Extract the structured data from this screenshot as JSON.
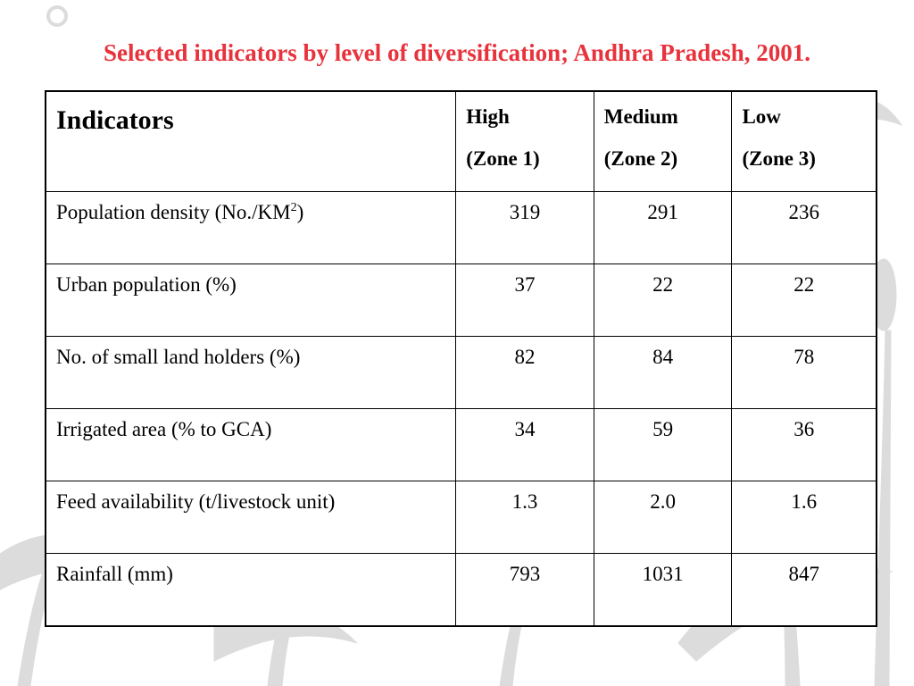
{
  "title": "Selected indicators by level of diversification; Andhra Pradesh, 2001.",
  "colors": {
    "title": "#e8323c",
    "border": "#000000",
    "background_art": "#d9d9d9"
  },
  "table": {
    "headers": {
      "indicators": "Indicators",
      "high_line1": "High",
      "high_line2": "(Zone 1)",
      "medium_line1": "Medium",
      "medium_line2": "(Zone 2)",
      "low_line1": "Low",
      "low_line2": "(Zone 3)"
    },
    "rows": [
      {
        "label": "Population density (No./KM",
        "label_sup": "2",
        "label_suffix": ")",
        "high": "319",
        "medium": "291",
        "low": "236"
      },
      {
        "label": "Urban population (%)",
        "high": "37",
        "medium": "22",
        "low": "22"
      },
      {
        "label": "No. of small land holders (%)",
        "high": "82",
        "medium": "84",
        "low": "78"
      },
      {
        "label": "Irrigated area (% to GCA)",
        "high": "34",
        "medium": "59",
        "low": "36"
      },
      {
        "label": "Feed availability (t/livestock unit)",
        "high": "1.3",
        "medium": "2.0",
        "low": "1.6"
      },
      {
        "label": "Rainfall (mm)",
        "high": "793",
        "medium": "1031",
        "low": "847"
      }
    ]
  }
}
